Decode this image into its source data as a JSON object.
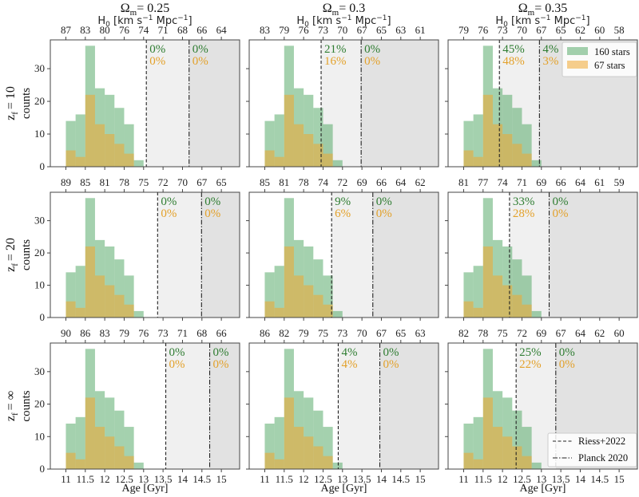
{
  "chart_data": {
    "type": "bar",
    "layout": "3x3 grid of histograms",
    "column_titles": [
      {
        "symbol": "Ω",
        "sub": "m",
        "value": "= 0.25"
      },
      {
        "symbol": "Ω",
        "sub": "m",
        "value": "= 0.3"
      },
      {
        "symbol": "Ω",
        "sub": "m",
        "value": "= 0.35"
      }
    ],
    "top_axis_label": {
      "main": "H",
      "sub": "0",
      "rest1": " [km s",
      "sup1": "−1",
      "rest2": " Mpc",
      "sup2": "−1",
      "rest3": "]"
    },
    "row_labels": [
      {
        "symbol": "z",
        "sub": "f",
        "value": "= 10"
      },
      {
        "symbol": "z",
        "sub": "f",
        "value": "= 20"
      },
      {
        "symbol": "z",
        "sub": "f",
        "value": "= ∞"
      }
    ],
    "ylabel": "counts",
    "xlabel": "Age [Gyr]",
    "xlim": [
      10.6,
      15.47
    ],
    "ylim": [
      0,
      38.8
    ],
    "xticks": [
      11,
      11.5,
      12,
      12.5,
      13,
      13.5,
      14,
      14.5,
      15
    ],
    "xtick_labels": [
      "11",
      "11.5",
      "12",
      "12.5",
      "13",
      "13.5",
      "14",
      "14.5",
      "15"
    ],
    "yticks": [
      0,
      10,
      20,
      30
    ],
    "bin_edges": [
      11,
      11.25,
      11.5,
      11.75,
      12,
      12.25,
      12.5,
      12.75,
      13,
      13.25
    ],
    "series": [
      {
        "name": "160 stars",
        "color": "#5aab6c",
        "values": [
          14,
          16,
          37,
          24,
          22,
          18,
          13,
          2,
          0
        ]
      },
      {
        "name": "67 stars",
        "color": "#f0a830",
        "values": [
          5,
          3,
          22,
          13,
          10,
          7,
          4,
          0,
          0
        ]
      }
    ],
    "lines": [
      {
        "name": "Riess+2022",
        "style": "dashed"
      },
      {
        "name": "Planck 2020",
        "style": "dashdot"
      }
    ],
    "shade_colors": {
      "riess_region": "#f0f0f0",
      "planck_region": "#e2e2e2"
    },
    "pct_colors": {
      "green": "#2f7d32",
      "orange": "#e3a12a"
    },
    "legend_placement": {
      "series": "top-right of panel row1-col3",
      "lines": "bottom-right of panel row3-col3"
    },
    "panels": [
      {
        "row": 0,
        "col": 0,
        "h0_ticks": [
          "87",
          "83",
          "80",
          "76",
          "74",
          "71",
          "68",
          "66",
          "64"
        ],
        "riess_age": 13.07,
        "planck_age": 14.17,
        "riess_pct": [
          "0%",
          "0%"
        ],
        "planck_pct": [
          "0%",
          "0%"
        ]
      },
      {
        "row": 0,
        "col": 1,
        "h0_ticks": [
          "83",
          "79",
          "76",
          "73",
          "70",
          "67",
          "65",
          "63",
          "61"
        ],
        "riess_age": 12.45,
        "planck_age": 13.48,
        "riess_pct": [
          "21%",
          "16%"
        ],
        "planck_pct": [
          "0%",
          "0%"
        ]
      },
      {
        "row": 0,
        "col": 2,
        "h0_ticks": [
          "79",
          "76",
          "73",
          "70",
          "67",
          "65",
          "62",
          "60",
          "58"
        ],
        "riess_age": 11.92,
        "planck_age": 12.95,
        "riess_pct": [
          "45%",
          "48%"
        ],
        "planck_pct": [
          "4%",
          "3%"
        ]
      },
      {
        "row": 1,
        "col": 0,
        "h0_ticks": [
          "89",
          "85",
          "81",
          "78",
          "75",
          "72",
          "70",
          "67",
          "65"
        ],
        "riess_age": 13.36,
        "planck_age": 14.49,
        "riess_pct": [
          "0%",
          "0%"
        ],
        "planck_pct": [
          "0%",
          "0%"
        ]
      },
      {
        "row": 1,
        "col": 1,
        "h0_ticks": [
          "85",
          "81",
          "78",
          "74",
          "72",
          "69",
          "66",
          "64",
          "62"
        ],
        "riess_age": 12.72,
        "planck_age": 13.78,
        "riess_pct": [
          "9%",
          "6%"
        ],
        "planck_pct": [
          "0%",
          "0%"
        ]
      },
      {
        "row": 1,
        "col": 2,
        "h0_ticks": [
          "81",
          "77",
          "74",
          "71",
          "69",
          "66",
          "64",
          "61",
          "59"
        ],
        "riess_age": 12.18,
        "planck_age": 13.2,
        "riess_pct": [
          "33%",
          "28%"
        ],
        "planck_pct": [
          "0%",
          "0%"
        ]
      },
      {
        "row": 2,
        "col": 0,
        "h0_ticks": [
          "90",
          "86",
          "83",
          "79",
          "76",
          "73",
          "71",
          "68",
          "66"
        ],
        "riess_age": 13.57,
        "planck_age": 14.7,
        "riess_pct": [
          "0%",
          "0%"
        ],
        "planck_pct": [
          "0%",
          "0%"
        ]
      },
      {
        "row": 2,
        "col": 1,
        "h0_ticks": [
          "86",
          "82",
          "79",
          "75",
          "73",
          "70",
          "67",
          "65",
          "63"
        ],
        "riess_age": 12.89,
        "planck_age": 13.96,
        "riess_pct": [
          "4%",
          "4%"
        ],
        "planck_pct": [
          "0%",
          "0%"
        ]
      },
      {
        "row": 2,
        "col": 2,
        "h0_ticks": [
          "82",
          "78",
          "75",
          "72",
          "69",
          "67",
          "64",
          "62",
          "60"
        ],
        "riess_age": 12.35,
        "planck_age": 13.37,
        "riess_pct": [
          "25%",
          "22%"
        ],
        "planck_pct": [
          "0%",
          "0%"
        ]
      }
    ]
  }
}
